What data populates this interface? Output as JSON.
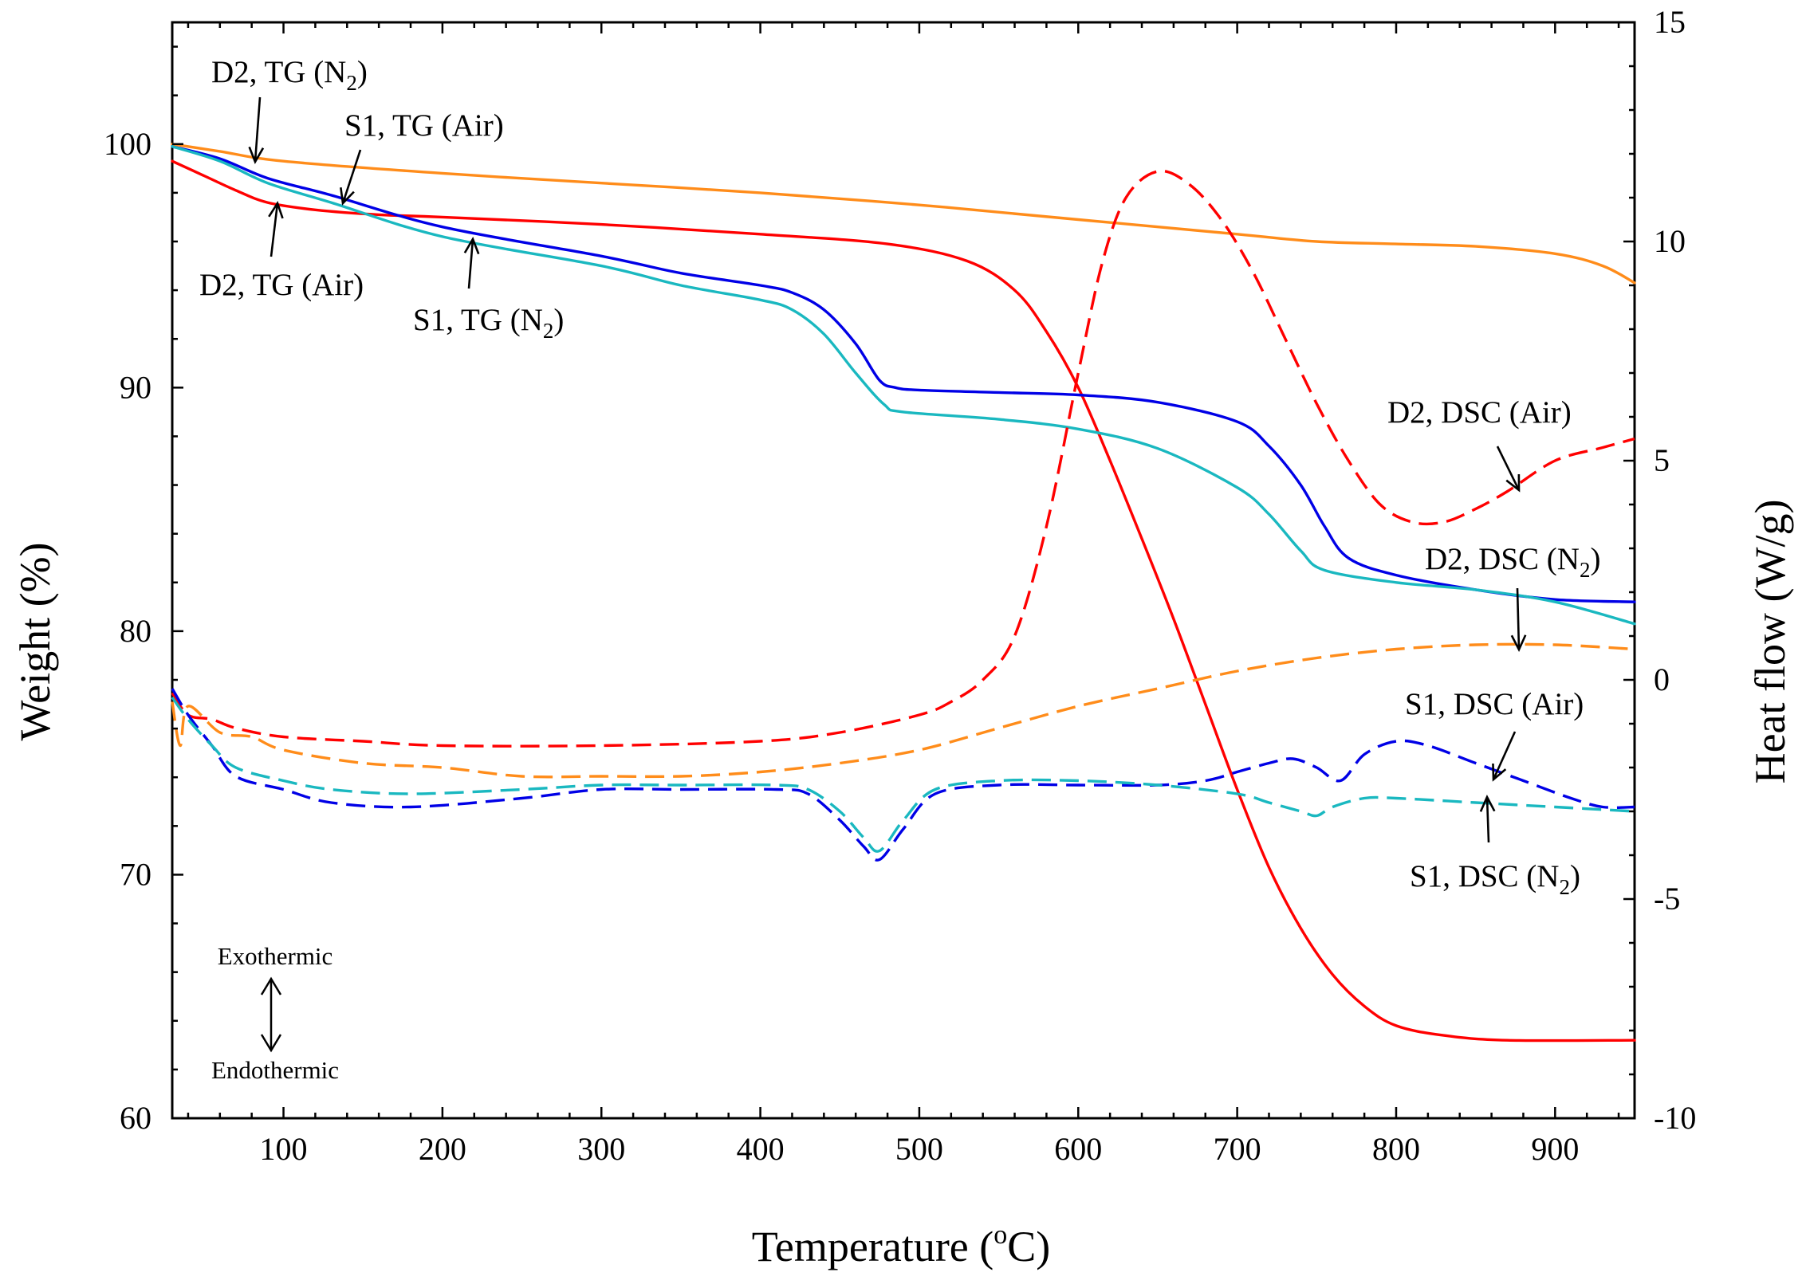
{
  "chart_data": {
    "type": "line",
    "xlabel": "Temperature (°C)",
    "xlabel_parts": [
      "Temperature (",
      "o",
      "C)"
    ],
    "ylabel_left": "Weight (%)",
    "ylabel_right": "Heat flow (W/g)",
    "xlim": [
      30,
      950
    ],
    "ylim_left": [
      60,
      105
    ],
    "ylim_right": [
      -10,
      15
    ],
    "x_ticks": [
      "100",
      "200",
      "300",
      "400",
      "500",
      "600",
      "700",
      "800",
      "900"
    ],
    "y_left_ticks": [
      "60",
      "70",
      "80",
      "90",
      "100"
    ],
    "y_right_ticks": [
      "-10",
      "-5",
      "0",
      "5",
      "10",
      "15"
    ],
    "colors": {
      "red": "#ff0000",
      "orange": "#ff8c1a",
      "blue": "#0000e6",
      "cyan": "#1ab8c0",
      "axes": "#000000"
    },
    "series": [
      {
        "name": "D2, TG (Air)",
        "axis": "left",
        "style": "solid",
        "color": "#ff0000",
        "points": [
          [
            30,
            99.3
          ],
          [
            50,
            98.7
          ],
          [
            70,
            98.1
          ],
          [
            90,
            97.6
          ],
          [
            120,
            97.3
          ],
          [
            160,
            97.1
          ],
          [
            200,
            97.0
          ],
          [
            300,
            96.7
          ],
          [
            400,
            96.3
          ],
          [
            480,
            95.9
          ],
          [
            530,
            95.2
          ],
          [
            560,
            94.0
          ],
          [
            580,
            92.3
          ],
          [
            600,
            90.0
          ],
          [
            620,
            87.0
          ],
          [
            640,
            83.8
          ],
          [
            660,
            80.5
          ],
          [
            680,
            77.0
          ],
          [
            700,
            73.5
          ],
          [
            720,
            70.3
          ],
          [
            740,
            67.8
          ],
          [
            760,
            65.9
          ],
          [
            780,
            64.6
          ],
          [
            800,
            63.8
          ],
          [
            830,
            63.4
          ],
          [
            870,
            63.2
          ],
          [
            950,
            63.2
          ]
        ]
      },
      {
        "name": "D2, TG (N2)",
        "axis": "left",
        "style": "solid",
        "color": "#ff8c1a",
        "points": [
          [
            30,
            100.0
          ],
          [
            60,
            99.7
          ],
          [
            100,
            99.3
          ],
          [
            200,
            98.8
          ],
          [
            300,
            98.4
          ],
          [
            400,
            98.0
          ],
          [
            500,
            97.5
          ],
          [
            600,
            96.9
          ],
          [
            700,
            96.3
          ],
          [
            750,
            96.0
          ],
          [
            800,
            95.9
          ],
          [
            850,
            95.8
          ],
          [
            900,
            95.5
          ],
          [
            930,
            95.0
          ],
          [
            950,
            94.3
          ]
        ]
      },
      {
        "name": "S1, TG (Air)",
        "axis": "left",
        "style": "solid",
        "color": "#0000e6",
        "points": [
          [
            30,
            99.9
          ],
          [
            60,
            99.4
          ],
          [
            90,
            98.6
          ],
          [
            130,
            97.9
          ],
          [
            200,
            96.6
          ],
          [
            300,
            95.4
          ],
          [
            350,
            94.7
          ],
          [
            400,
            94.2
          ],
          [
            420,
            93.9
          ],
          [
            440,
            93.2
          ],
          [
            460,
            91.8
          ],
          [
            475,
            90.3
          ],
          [
            485,
            90.0
          ],
          [
            500,
            89.9
          ],
          [
            550,
            89.8
          ],
          [
            600,
            89.7
          ],
          [
            650,
            89.4
          ],
          [
            700,
            88.6
          ],
          [
            720,
            87.6
          ],
          [
            740,
            86.0
          ],
          [
            755,
            84.3
          ],
          [
            770,
            83.0
          ],
          [
            800,
            82.3
          ],
          [
            850,
            81.7
          ],
          [
            900,
            81.3
          ],
          [
            950,
            81.2
          ]
        ]
      },
      {
        "name": "S1, TG (N2)",
        "axis": "left",
        "style": "solid",
        "color": "#1ab8c0",
        "points": [
          [
            30,
            99.9
          ],
          [
            60,
            99.3
          ],
          [
            90,
            98.4
          ],
          [
            130,
            97.6
          ],
          [
            200,
            96.2
          ],
          [
            300,
            95.0
          ],
          [
            350,
            94.2
          ],
          [
            400,
            93.6
          ],
          [
            420,
            93.2
          ],
          [
            440,
            92.2
          ],
          [
            460,
            90.6
          ],
          [
            478,
            89.3
          ],
          [
            490,
            89.0
          ],
          [
            550,
            88.7
          ],
          [
            600,
            88.3
          ],
          [
            650,
            87.5
          ],
          [
            700,
            85.9
          ],
          [
            720,
            84.8
          ],
          [
            740,
            83.3
          ],
          [
            755,
            82.5
          ],
          [
            800,
            82.0
          ],
          [
            850,
            81.7
          ],
          [
            900,
            81.2
          ],
          [
            950,
            80.3
          ]
        ]
      },
      {
        "name": "D2, DSC (Air)",
        "axis": "right",
        "style": "dashed",
        "color": "#ff0000",
        "points": [
          [
            30,
            -0.3
          ],
          [
            40,
            -0.8
          ],
          [
            55,
            -0.9
          ],
          [
            70,
            -1.1
          ],
          [
            100,
            -1.3
          ],
          [
            150,
            -1.4
          ],
          [
            200,
            -1.5
          ],
          [
            300,
            -1.5
          ],
          [
            400,
            -1.4
          ],
          [
            450,
            -1.2
          ],
          [
            500,
            -0.8
          ],
          [
            520,
            -0.5
          ],
          [
            540,
            0.0
          ],
          [
            560,
            1.0
          ],
          [
            580,
            3.5
          ],
          [
            600,
            7.0
          ],
          [
            615,
            9.5
          ],
          [
            630,
            11.0
          ],
          [
            650,
            11.6
          ],
          [
            670,
            11.3
          ],
          [
            690,
            10.5
          ],
          [
            710,
            9.3
          ],
          [
            730,
            7.8
          ],
          [
            750,
            6.3
          ],
          [
            770,
            5.0
          ],
          [
            790,
            4.0
          ],
          [
            810,
            3.6
          ],
          [
            830,
            3.6
          ],
          [
            850,
            3.9
          ],
          [
            870,
            4.3
          ],
          [
            900,
            5.0
          ],
          [
            930,
            5.3
          ],
          [
            950,
            5.5
          ]
        ]
      },
      {
        "name": "D2, DSC (N2)",
        "axis": "right",
        "style": "dashed",
        "color": "#ff8c1a",
        "points": [
          [
            30,
            -0.5
          ],
          [
            35,
            -1.5
          ],
          [
            40,
            -0.6
          ],
          [
            60,
            -1.2
          ],
          [
            80,
            -1.3
          ],
          [
            100,
            -1.6
          ],
          [
            150,
            -1.9
          ],
          [
            200,
            -2.0
          ],
          [
            250,
            -2.2
          ],
          [
            300,
            -2.2
          ],
          [
            350,
            -2.2
          ],
          [
            400,
            -2.1
          ],
          [
            450,
            -1.9
          ],
          [
            500,
            -1.6
          ],
          [
            550,
            -1.1
          ],
          [
            600,
            -0.6
          ],
          [
            650,
            -0.2
          ],
          [
            700,
            0.2
          ],
          [
            750,
            0.5
          ],
          [
            800,
            0.7
          ],
          [
            850,
            0.8
          ],
          [
            900,
            0.8
          ],
          [
            950,
            0.7
          ]
        ]
      },
      {
        "name": "S1, DSC (Air)",
        "axis": "right",
        "style": "dashed",
        "color": "#0000e6",
        "points": [
          [
            30,
            -0.2
          ],
          [
            40,
            -0.8
          ],
          [
            55,
            -1.5
          ],
          [
            70,
            -2.2
          ],
          [
            100,
            -2.5
          ],
          [
            130,
            -2.8
          ],
          [
            180,
            -2.9
          ],
          [
            250,
            -2.7
          ],
          [
            300,
            -2.5
          ],
          [
            350,
            -2.5
          ],
          [
            410,
            -2.5
          ],
          [
            430,
            -2.6
          ],
          [
            450,
            -3.2
          ],
          [
            465,
            -3.8
          ],
          [
            475,
            -4.1
          ],
          [
            490,
            -3.4
          ],
          [
            510,
            -2.6
          ],
          [
            550,
            -2.4
          ],
          [
            600,
            -2.4
          ],
          [
            650,
            -2.4
          ],
          [
            680,
            -2.3
          ],
          [
            700,
            -2.1
          ],
          [
            720,
            -1.9
          ],
          [
            735,
            -1.8
          ],
          [
            750,
            -2.0
          ],
          [
            765,
            -2.3
          ],
          [
            780,
            -1.7
          ],
          [
            800,
            -1.4
          ],
          [
            820,
            -1.5
          ],
          [
            850,
            -1.9
          ],
          [
            880,
            -2.3
          ],
          [
            910,
            -2.7
          ],
          [
            930,
            -2.9
          ],
          [
            950,
            -2.9
          ]
        ]
      },
      {
        "name": "S1, DSC (N2)",
        "axis": "right",
        "style": "dashed",
        "color": "#1ab8c0",
        "points": [
          [
            30,
            -0.4
          ],
          [
            40,
            -0.9
          ],
          [
            55,
            -1.5
          ],
          [
            70,
            -2.0
          ],
          [
            100,
            -2.3
          ],
          [
            130,
            -2.5
          ],
          [
            180,
            -2.6
          ],
          [
            250,
            -2.5
          ],
          [
            300,
            -2.4
          ],
          [
            350,
            -2.4
          ],
          [
            410,
            -2.4
          ],
          [
            430,
            -2.5
          ],
          [
            450,
            -3.0
          ],
          [
            465,
            -3.6
          ],
          [
            475,
            -3.9
          ],
          [
            490,
            -3.2
          ],
          [
            510,
            -2.5
          ],
          [
            550,
            -2.3
          ],
          [
            600,
            -2.3
          ],
          [
            650,
            -2.4
          ],
          [
            700,
            -2.6
          ],
          [
            720,
            -2.8
          ],
          [
            740,
            -3.0
          ],
          [
            750,
            -3.1
          ],
          [
            760,
            -2.9
          ],
          [
            780,
            -2.7
          ],
          [
            800,
            -2.7
          ],
          [
            850,
            -2.8
          ],
          [
            900,
            -2.9
          ],
          [
            950,
            -3.0
          ]
        ]
      }
    ],
    "annotations": [
      {
        "id": "d2-tg-n2",
        "text": "D2, TG (N",
        "sub": "2",
        "tail": ")"
      },
      {
        "id": "s1-tg-air",
        "text": "S1, TG (Air)"
      },
      {
        "id": "d2-tg-air",
        "text": "D2, TG (Air)"
      },
      {
        "id": "s1-tg-n2",
        "text": "S1, TG (N",
        "sub": "2",
        "tail": ")"
      },
      {
        "id": "d2-dsc-air",
        "text": "D2, DSC (Air)"
      },
      {
        "id": "d2-dsc-n2",
        "text": "D2, DSC (N",
        "sub": "2",
        "tail": ")"
      },
      {
        "id": "s1-dsc-air",
        "text": "S1, DSC (Air)"
      },
      {
        "id": "s1-dsc-n2",
        "text": "S1, DSC (N",
        "sub": "2",
        "tail": ")"
      }
    ],
    "legend_note": {
      "top": "Exothermic",
      "bottom": "Endothermic"
    }
  }
}
